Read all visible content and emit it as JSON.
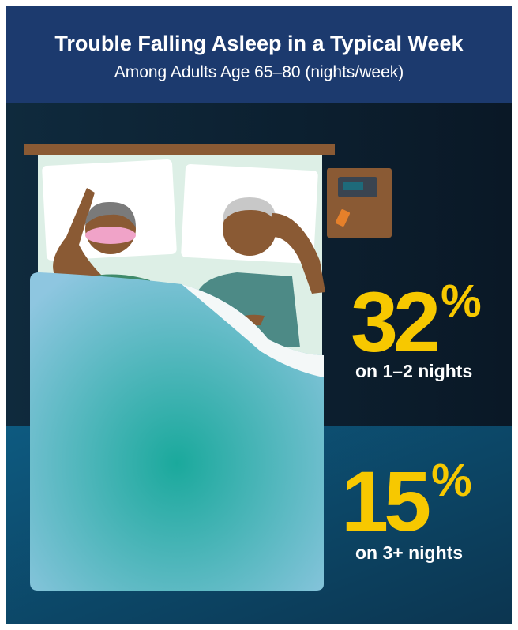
{
  "header": {
    "title": "Trouble Falling Asleep in a Typical Week",
    "subtitle": "Among Adults Age 65–80 (nights/week)"
  },
  "stats": [
    {
      "value": 32,
      "unit": "%",
      "label": "on 1–2 nights"
    },
    {
      "value": 15,
      "unit": "%",
      "label": "on 3+ nights"
    }
  ]
}
